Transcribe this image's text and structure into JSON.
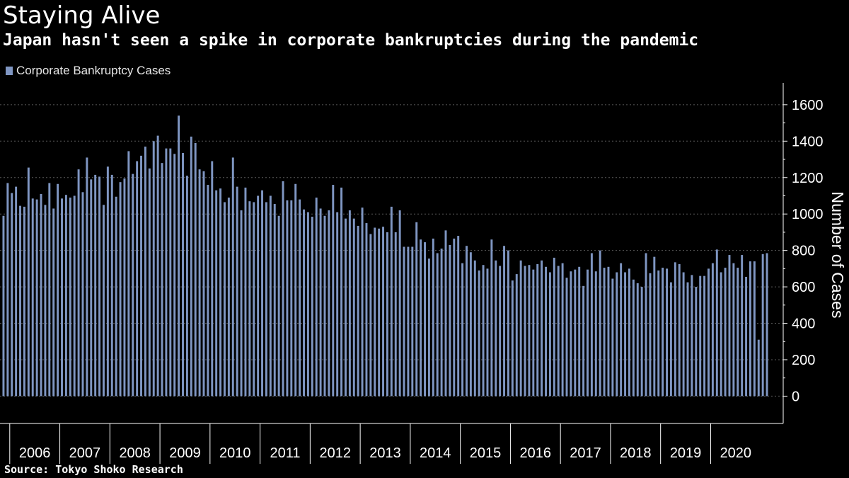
{
  "title": "Staying Alive",
  "subtitle": "Japan hasn't seen a spike in corporate bankruptcies during the pandemic",
  "source": "Source: Tokyo Shoko Research",
  "colors": {
    "background": "#000000",
    "bar": "#7f96c2",
    "grid": "#5a5a5a",
    "text": "#ffffff"
  },
  "chart_data": {
    "type": "bar",
    "series_name": "Corporate Bankruptcy Cases",
    "ylabel": "Number of Cases",
    "ylim": [
      -150,
      1720
    ],
    "yticks": [
      0,
      200,
      400,
      600,
      800,
      1000,
      1200,
      1400,
      1600
    ],
    "grid": "horizontal dotted",
    "legend_position": "top-left",
    "x_start": "2005-11",
    "x_end": "2020-06",
    "x_ticklabels": [
      "2006",
      "2007",
      "2008",
      "2009",
      "2010",
      "2011",
      "2012",
      "2013",
      "2014",
      "2015",
      "2016",
      "2017",
      "2018",
      "2019",
      "2020"
    ],
    "values": [
      990,
      1170,
      1115,
      1150,
      1045,
      1040,
      1255,
      1085,
      1080,
      1110,
      1050,
      1170,
      1030,
      1165,
      1085,
      1105,
      1090,
      1100,
      1245,
      1120,
      1310,
      1190,
      1215,
      1205,
      1050,
      1260,
      1215,
      1095,
      1175,
      1195,
      1345,
      1220,
      1290,
      1320,
      1370,
      1250,
      1400,
      1430,
      1280,
      1360,
      1360,
      1330,
      1540,
      1335,
      1210,
      1425,
      1390,
      1245,
      1235,
      1160,
      1290,
      1130,
      1140,
      1065,
      1090,
      1310,
      1150,
      1020,
      1145,
      1070,
      1065,
      1100,
      1130,
      1065,
      1100,
      1055,
      990,
      1180,
      1075,
      1075,
      1165,
      1080,
      1025,
      1010,
      985,
      1090,
      1030,
      990,
      1020,
      1160,
      1010,
      1145,
      975,
      1020,
      975,
      935,
      1035,
      950,
      890,
      925,
      920,
      930,
      900,
      1040,
      900,
      1020,
      820,
      820,
      820,
      955,
      860,
      845,
      755,
      865,
      785,
      810,
      910,
      830,
      865,
      880,
      730,
      825,
      790,
      745,
      690,
      720,
      700,
      860,
      745,
      715,
      825,
      800,
      635,
      670,
      745,
      715,
      720,
      695,
      725,
      745,
      710,
      680,
      760,
      715,
      730,
      650,
      685,
      695,
      710,
      605,
      695,
      785,
      685,
      800,
      705,
      710,
      645,
      680,
      730,
      680,
      700,
      640,
      620,
      600,
      785,
      675,
      765,
      690,
      705,
      700,
      625,
      735,
      725,
      680,
      625,
      665,
      600,
      660,
      660,
      700,
      730,
      805,
      680,
      705,
      775,
      730,
      705,
      775,
      655,
      740,
      740,
      310,
      780,
      785
    ]
  }
}
